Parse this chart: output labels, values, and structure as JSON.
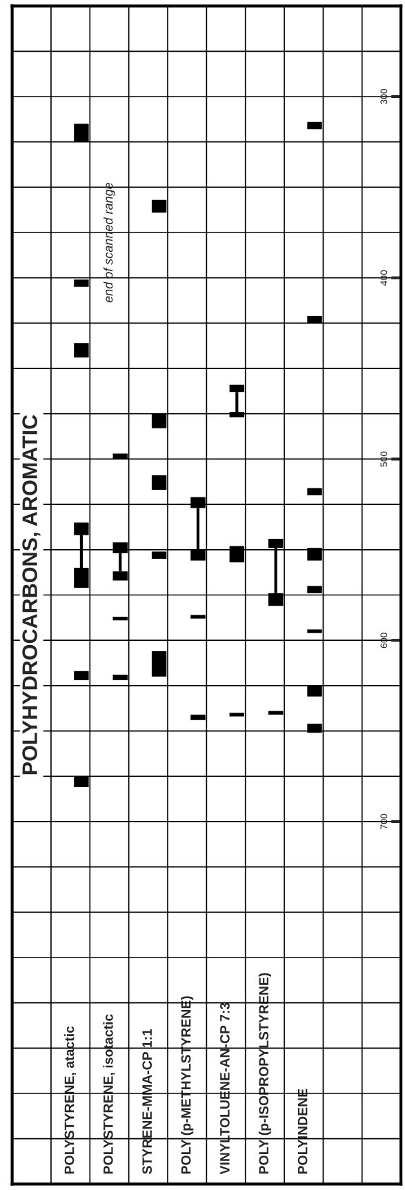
{
  "chart_data": {
    "type": "bar",
    "title": "POLYHYDROCARBONS, AROMATIC",
    "categories": [
      null,
      "POLYSTYRENE, atactic",
      "POLYSTYRENE, isotactic",
      "STYRENE-MMA-CP 1:1",
      "POLY (p-METHYLSTYRENE)",
      "VINYLTOLUENE-AN-CP 7:3",
      "POLY (p-ISOPROPYLSTYRENE)",
      "POLYINDENE",
      null
    ],
    "series": [
      {
        "color": "#000000",
        "base": [
          null,
          315,
          497,
          357,
          521,
          459,
          544,
          314,
          null
        ],
        "values": [
          null,
          10,
          3,
          7,
          6,
          4,
          5,
          4,
          null
        ],
        "errors": [
          null,
          null,
          null,
          null,
          [
            527,
            550
          ],
          [
            463,
            474
          ],
          [
            549,
            574
          ],
          null,
          null
        ]
      },
      {
        "color": "#000000",
        "base": [
          null,
          401,
          546,
          475,
          550,
          474,
          574,
          421,
          null
        ],
        "values": [
          null,
          4,
          6,
          8,
          6,
          3,
          7,
          4,
          null
        ],
        "errors": [
          null,
          null,
          [
            552,
            562
          ],
          null,
          null,
          null,
          null,
          null,
          null
        ]
      },
      {
        "color": "#000000",
        "base": [
          null,
          436,
          562,
          509,
          586,
          548,
          639,
          516,
          null
        ],
        "values": [
          null,
          8,
          5,
          8,
          2,
          9,
          2,
          4,
          null
        ]
      },
      {
        "color": "#000000",
        "base": [
          null,
          535,
          587,
          551,
          641,
          640,
          null,
          549,
          null
        ],
        "values": [
          null,
          7,
          2,
          4,
          3,
          2,
          null,
          7,
          null
        ],
        "errors": [
          null,
          [
            542,
            560
          ],
          null,
          null,
          null,
          null,
          null,
          null,
          null
        ]
      },
      {
        "color": "#000000",
        "base": [
          null,
          560,
          619,
          606,
          null,
          null,
          null,
          570,
          null
        ],
        "values": [
          null,
          11,
          3,
          14,
          null,
          null,
          null,
          4,
          null
        ]
      },
      {
        "color": "#000000",
        "base": [
          null,
          617,
          null,
          null,
          null,
          null,
          null,
          594,
          null
        ],
        "values": [
          null,
          5,
          null,
          null,
          null,
          null,
          null,
          2,
          null
        ]
      },
      {
        "color": "#000000",
        "base": [
          null,
          675,
          null,
          null,
          null,
          null,
          null,
          625,
          null
        ],
        "values": [
          null,
          6,
          null,
          null,
          null,
          null,
          null,
          6,
          null
        ]
      },
      {
        "color": "#000000",
        "base": [
          null,
          null,
          null,
          null,
          null,
          null,
          null,
          646,
          null
        ],
        "values": [
          null,
          null,
          null,
          null,
          null,
          null,
          null,
          5,
          null
        ]
      }
    ],
    "ylim": [
      900,
      250
    ],
    "yticks": [
      {
        "value": 250,
        "label": null
      },
      {
        "value": 275,
        "label": null
      },
      300,
      {
        "value": 325,
        "label": null
      },
      {
        "value": 350,
        "label": null
      },
      {
        "value": 375,
        "label": null
      },
      400,
      {
        "value": 425,
        "label": null
      },
      {
        "value": 450,
        "label": null
      },
      {
        "value": 475,
        "label": null
      },
      500,
      {
        "value": 525,
        "label": null
      },
      {
        "value": 550,
        "label": null
      },
      {
        "value": 575,
        "label": null
      },
      600,
      {
        "value": 625,
        "label": null
      },
      {
        "value": 650,
        "label": null
      },
      {
        "value": 675,
        "label": null
      },
      700,
      {
        "value": 725,
        "label": null
      },
      {
        "value": 750,
        "label": null
      },
      {
        "value": 775,
        "label": null
      },
      {
        "value": 800,
        "label": null
      },
      {
        "value": 825,
        "label": null
      },
      {
        "value": 850,
        "label": null
      },
      {
        "value": 875,
        "label": null
      },
      {
        "value": 900,
        "label": null
      }
    ],
    "annotations": [
      "end of scanned range"
    ],
    "grid": true
  }
}
